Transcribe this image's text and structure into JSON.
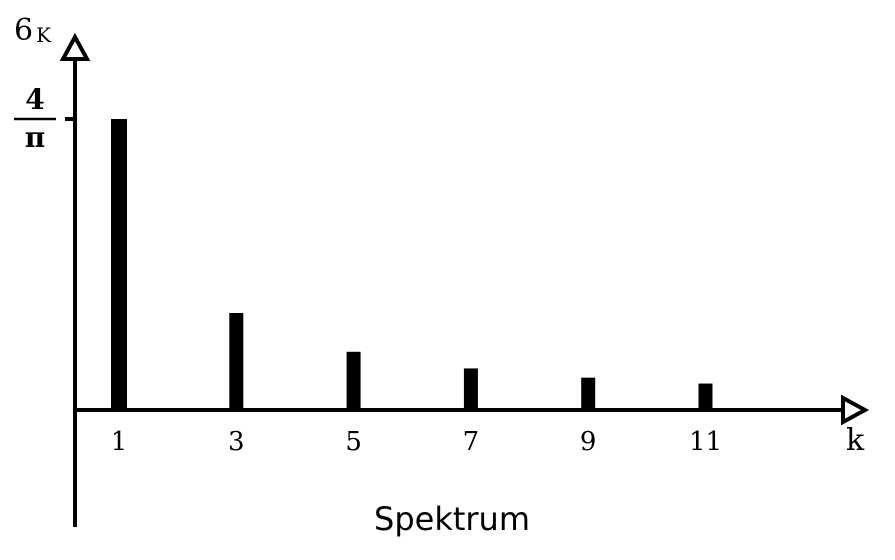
{
  "chart_data": {
    "type": "bar",
    "caption": "Spektrum",
    "ylabel": "6",
    "ylabel_sub": "K",
    "xlabel": "k",
    "categories": [
      "1",
      "3",
      "5",
      "7",
      "9",
      "11"
    ],
    "values": [
      1.2732,
      0.4244,
      0.2546,
      0.1819,
      0.1415,
      0.1157
    ],
    "ylim": [
      -0.45,
      1.6
    ],
    "yticks": [
      {
        "value": 1.2732,
        "numerator": "4",
        "denominator": "π"
      }
    ],
    "grid": false,
    "legend": "none",
    "bar_color": "#000000"
  }
}
